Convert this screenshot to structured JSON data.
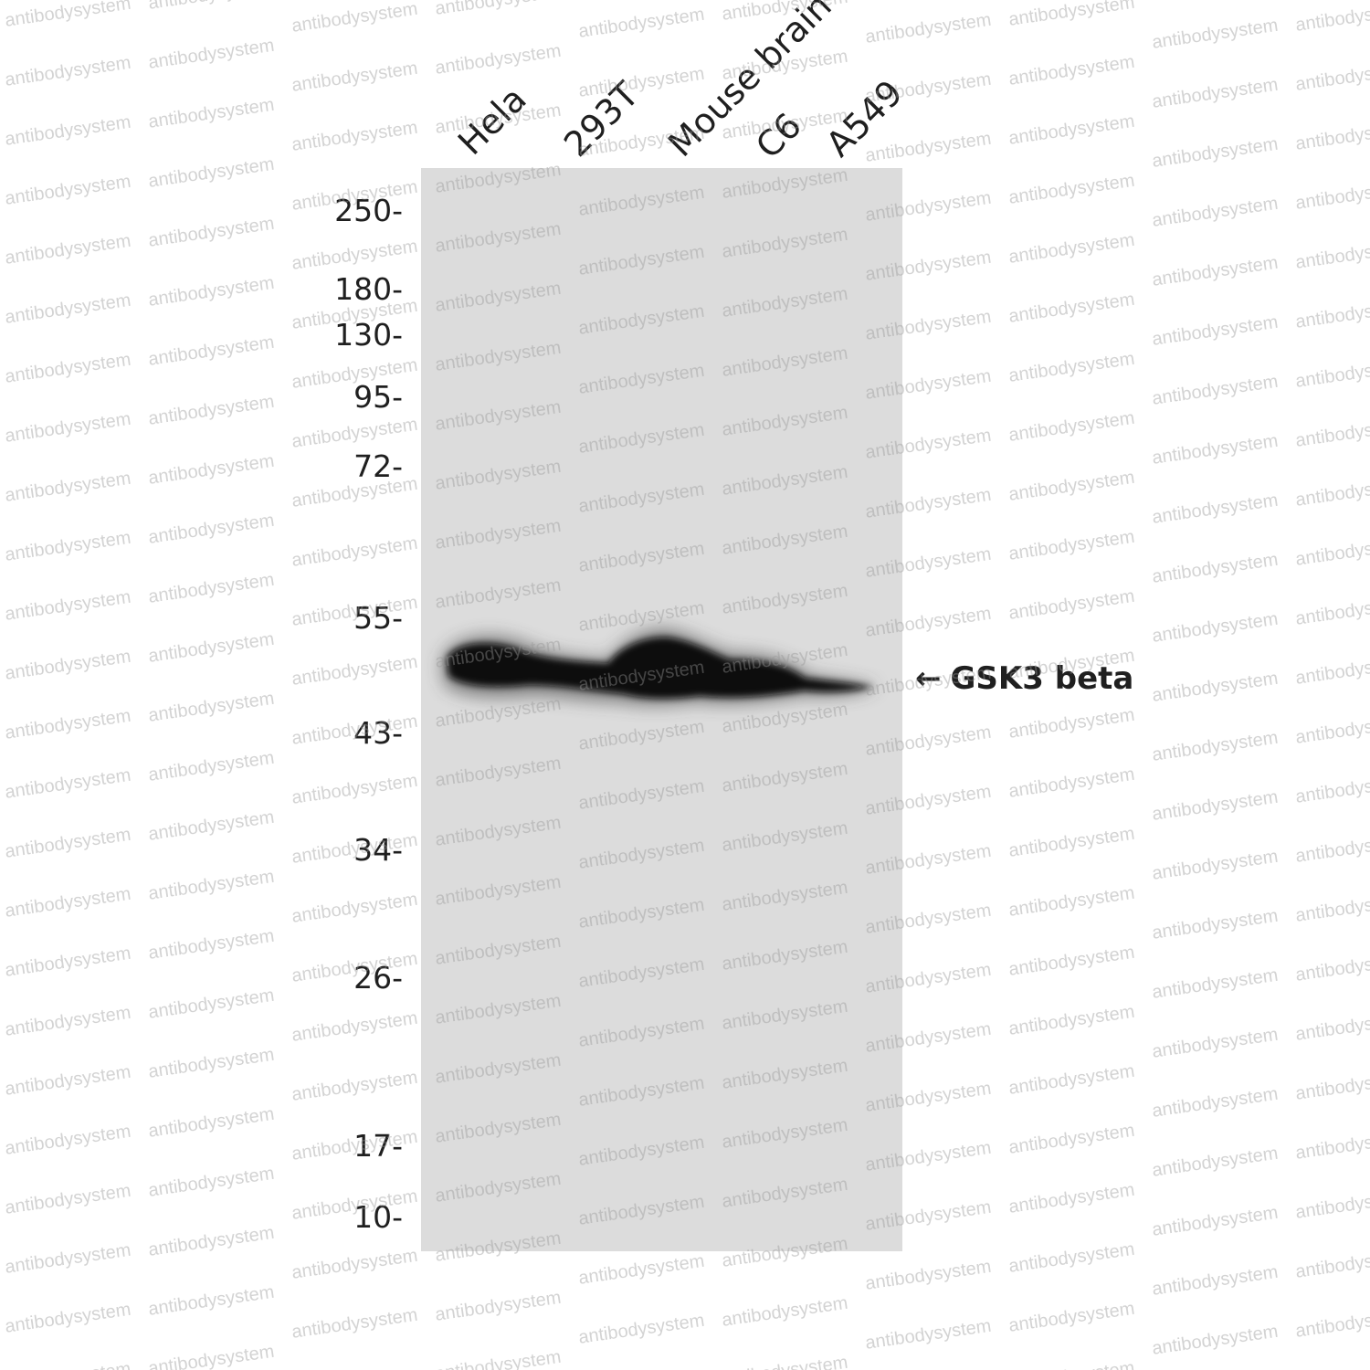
{
  "blot": {
    "lanes": [
      {
        "label": "Hela"
      },
      {
        "label": "293T"
      },
      {
        "label": "Mouse brain"
      },
      {
        "label": "C6"
      },
      {
        "label": "A549"
      }
    ],
    "markers": [
      "250-",
      "180-",
      "130-",
      "95-",
      "72-",
      "55-",
      "43-",
      "34-",
      "26-",
      "17-",
      "10-"
    ],
    "target": {
      "arrow": "←",
      "label": "GSK3 beta"
    },
    "membrane_color": "#dcdcdc",
    "band_color": "#0a0a0a"
  },
  "watermark": {
    "text": "antibodysystem"
  }
}
